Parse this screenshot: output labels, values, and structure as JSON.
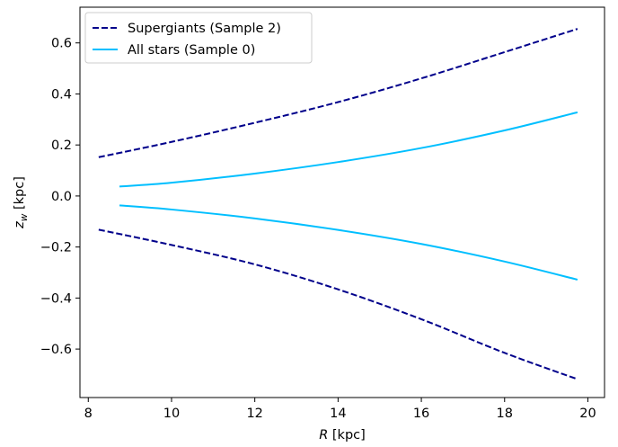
{
  "chart_data": {
    "type": "line",
    "title": "",
    "xlabel_italic": "R",
    "xlabel_rest": " [kpc]",
    "ylabel_base": "z",
    "ylabel_sub": "w",
    "ylabel_rest": " [kpc]",
    "xlim": [
      7.8,
      20.4
    ],
    "ylim": [
      -0.79,
      0.74
    ],
    "xticks": [
      8,
      10,
      12,
      14,
      16,
      18,
      20
    ],
    "xtick_labels": [
      "8",
      "10",
      "12",
      "14",
      "16",
      "18",
      "20"
    ],
    "yticks": [
      -0.6,
      -0.4,
      -0.2,
      0.0,
      0.2,
      0.4,
      0.6
    ],
    "ytick_labels": [
      "−0.6",
      "−0.4",
      "−0.2",
      "0.0",
      "0.2",
      "0.4",
      "0.6"
    ],
    "legend_position": "top-left",
    "legend": [
      "Supergiants (Sample 2)",
      "All stars (Sample 0)"
    ],
    "series": [
      {
        "name": "Supergiants (Sample 2)",
        "color": "#00008b",
        "style": "dashed",
        "x": [
          8.25,
          10,
          12,
          14,
          16,
          18,
          19.75
        ],
        "upper": [
          0.152,
          0.212,
          0.287,
          0.368,
          0.461,
          0.564,
          0.655
        ],
        "lower": [
          -0.132,
          -0.192,
          -0.268,
          -0.366,
          -0.483,
          -0.615,
          -0.718
        ]
      },
      {
        "name": "All stars (Sample 0)",
        "color": "#00bfff",
        "style": "solid",
        "x": [
          8.75,
          10,
          12,
          14,
          16,
          18,
          19.75
        ],
        "upper": [
          0.037,
          0.052,
          0.088,
          0.133,
          0.188,
          0.257,
          0.328
        ],
        "lower": [
          -0.037,
          -0.053,
          -0.088,
          -0.133,
          -0.188,
          -0.257,
          -0.328
        ]
      }
    ]
  }
}
